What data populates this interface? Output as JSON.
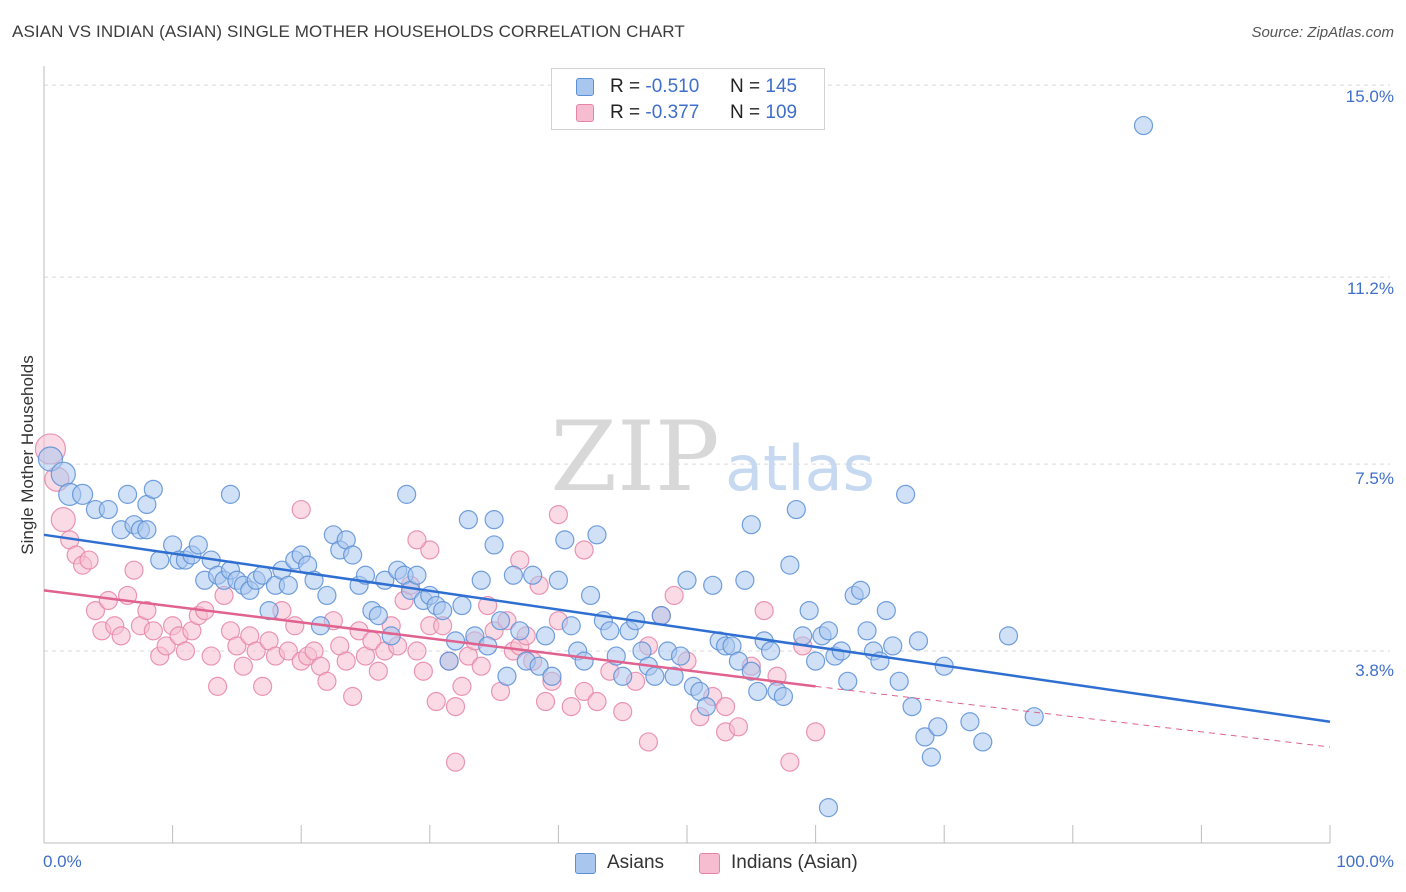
{
  "title": "ASIAN VS INDIAN (ASIAN) SINGLE MOTHER HOUSEHOLDS CORRELATION CHART",
  "source": "Source: ZipAtlas.com",
  "watermark": {
    "zip": "ZIP",
    "atlas": "atlas"
  },
  "legend": {
    "rows": [
      {
        "r_label": "R =",
        "r_value": "-0.510",
        "n_label": "N =",
        "n_value": "145"
      },
      {
        "r_label": "R =",
        "r_value": "-0.377",
        "n_label": "N =",
        "n_value": "109"
      }
    ]
  },
  "bottom_legend": {
    "asians": "Asians",
    "indians": "Indians (Asian)"
  },
  "colors": {
    "asians_fill": "#a9c6ef",
    "asians_stroke": "#5b8fd6",
    "asians_line": "#2f6fd1",
    "indians_fill": "#f6bdd0",
    "indians_stroke": "#e684a8",
    "indians_line": "#e0628f",
    "grid": "#d9d9d9",
    "tick_text": "#3f6fc9"
  },
  "chart_data": {
    "type": "scatter",
    "title": "ASIAN VS INDIAN (ASIAN) SINGLE MOTHER HOUSEHOLDS CORRELATION CHART",
    "xlabel": "",
    "ylabel": "Single Mother Households",
    "xlim": [
      0,
      100
    ],
    "ylim": [
      0,
      15.3
    ],
    "y_ticks": [
      3.8,
      7.5,
      11.2,
      15.0
    ],
    "y_tick_labels": [
      "3.8%",
      "7.5%",
      "11.2%",
      "15.0%"
    ],
    "x_tick_labels": [
      "0.0%",
      "100.0%"
    ],
    "grid": true,
    "legend_position": "top-center",
    "series": [
      {
        "name": "Asians",
        "r": -0.51,
        "n": 145,
        "trend": {
          "x0": 0,
          "y0": 6.1,
          "x1": 100,
          "y1": 2.4
        },
        "points": [
          [
            0.5,
            7.6
          ],
          [
            1.5,
            7.3
          ],
          [
            2,
            6.9
          ],
          [
            3,
            6.9
          ],
          [
            4,
            6.6
          ],
          [
            5,
            6.6
          ],
          [
            6.5,
            6.9
          ],
          [
            6,
            6.2
          ],
          [
            7,
            6.3
          ],
          [
            7.5,
            6.2
          ],
          [
            8,
            6.7
          ],
          [
            8,
            6.2
          ],
          [
            8.5,
            7.0
          ],
          [
            9,
            5.6
          ],
          [
            10,
            5.9
          ],
          [
            10.5,
            5.6
          ],
          [
            11,
            5.6
          ],
          [
            11.5,
            5.7
          ],
          [
            12,
            5.9
          ],
          [
            12.5,
            5.2
          ],
          [
            13,
            5.6
          ],
          [
            13.5,
            5.3
          ],
          [
            14,
            5.2
          ],
          [
            14.5,
            5.4
          ],
          [
            15,
            5.2
          ],
          [
            15.5,
            5.1
          ],
          [
            16,
            5.0
          ],
          [
            16.5,
            5.2
          ],
          [
            17,
            5.3
          ],
          [
            17.5,
            4.6
          ],
          [
            18,
            5.1
          ],
          [
            18.5,
            5.4
          ],
          [
            19,
            5.1
          ],
          [
            19.5,
            5.6
          ],
          [
            20,
            5.7
          ],
          [
            20.5,
            5.5
          ],
          [
            21,
            5.2
          ],
          [
            21.5,
            4.3
          ],
          [
            22,
            4.9
          ],
          [
            22.5,
            6.1
          ],
          [
            23,
            5.8
          ],
          [
            23.5,
            6.0
          ],
          [
            24,
            5.7
          ],
          [
            24.5,
            5.1
          ],
          [
            25,
            5.3
          ],
          [
            25.5,
            4.6
          ],
          [
            26,
            4.5
          ],
          [
            26.5,
            5.2
          ],
          [
            27,
            4.1
          ],
          [
            27.5,
            5.4
          ],
          [
            28,
            5.3
          ],
          [
            28.5,
            5.0
          ],
          [
            29,
            5.3
          ],
          [
            29.5,
            4.8
          ],
          [
            30,
            4.9
          ],
          [
            30.5,
            4.7
          ],
          [
            31,
            4.6
          ],
          [
            31.5,
            3.6
          ],
          [
            32,
            4.0
          ],
          [
            32.5,
            4.7
          ],
          [
            33,
            6.4
          ],
          [
            33.5,
            4.1
          ],
          [
            34,
            5.2
          ],
          [
            34.5,
            3.9
          ],
          [
            35,
            5.9
          ],
          [
            35.5,
            4.4
          ],
          [
            36,
            3.3
          ],
          [
            36.5,
            5.3
          ],
          [
            37,
            4.2
          ],
          [
            37.5,
            3.6
          ],
          [
            38,
            5.3
          ],
          [
            38.5,
            3.5
          ],
          [
            39,
            4.1
          ],
          [
            39.5,
            3.3
          ],
          [
            40,
            5.2
          ],
          [
            40.5,
            6.0
          ],
          [
            41,
            4.3
          ],
          [
            41.5,
            3.8
          ],
          [
            42,
            3.6
          ],
          [
            42.5,
            4.9
          ],
          [
            43,
            6.1
          ],
          [
            43.5,
            4.4
          ],
          [
            44,
            4.2
          ],
          [
            44.5,
            3.7
          ],
          [
            45,
            3.3
          ],
          [
            45.5,
            4.2
          ],
          [
            46,
            4.4
          ],
          [
            46.5,
            3.8
          ],
          [
            47,
            3.5
          ],
          [
            47.5,
            3.3
          ],
          [
            48,
            4.5
          ],
          [
            48.5,
            3.8
          ],
          [
            49,
            3.3
          ],
          [
            49.5,
            3.7
          ],
          [
            50,
            5.2
          ],
          [
            50.5,
            3.1
          ],
          [
            51,
            3.0
          ],
          [
            51.5,
            2.7
          ],
          [
            52,
            5.1
          ],
          [
            52.5,
            4.0
          ],
          [
            53,
            3.9
          ],
          [
            53.5,
            3.9
          ],
          [
            54,
            3.6
          ],
          [
            54.5,
            5.2
          ],
          [
            55,
            3.4
          ],
          [
            55.5,
            3.0
          ],
          [
            56,
            4.0
          ],
          [
            56.5,
            3.8
          ],
          [
            57,
            3.0
          ],
          [
            57.5,
            2.9
          ],
          [
            58,
            5.5
          ],
          [
            58.5,
            6.6
          ],
          [
            59,
            4.1
          ],
          [
            59.5,
            4.6
          ],
          [
            60,
            3.6
          ],
          [
            60.5,
            4.1
          ],
          [
            61,
            4.2
          ],
          [
            61.5,
            3.7
          ],
          [
            62,
            3.8
          ],
          [
            62.5,
            3.2
          ],
          [
            63,
            4.9
          ],
          [
            63.5,
            5.0
          ],
          [
            64,
            4.2
          ],
          [
            64.5,
            3.8
          ],
          [
            65,
            3.6
          ],
          [
            65.5,
            4.6
          ],
          [
            66,
            3.9
          ],
          [
            66.5,
            3.2
          ],
          [
            67,
            6.9
          ],
          [
            67.5,
            2.7
          ],
          [
            68,
            4.0
          ],
          [
            68.5,
            2.1
          ],
          [
            69,
            1.7
          ],
          [
            69.5,
            2.3
          ],
          [
            70,
            3.5
          ],
          [
            72,
            2.4
          ],
          [
            73,
            2.0
          ],
          [
            75,
            4.1
          ],
          [
            77,
            2.5
          ],
          [
            61,
            0.7
          ],
          [
            14.5,
            6.9
          ],
          [
            28.2,
            6.9
          ],
          [
            35,
            6.4
          ],
          [
            55,
            6.3
          ],
          [
            85.5,
            14.2
          ]
        ]
      },
      {
        "name": "Indians (Asian)",
        "r": -0.377,
        "n": 109,
        "trend": {
          "x0": 0,
          "y0": 5.0,
          "x1": 60,
          "y1": 3.1,
          "dash_x1": 100,
          "dash_y1": 1.9
        },
        "points": [
          [
            0.5,
            7.8
          ],
          [
            1,
            7.2
          ],
          [
            1.5,
            6.4
          ],
          [
            2,
            6.0
          ],
          [
            2.5,
            5.7
          ],
          [
            3,
            5.5
          ],
          [
            3.5,
            5.6
          ],
          [
            4,
            4.6
          ],
          [
            4.5,
            4.2
          ],
          [
            5,
            4.8
          ],
          [
            5.5,
            4.3
          ],
          [
            6,
            4.1
          ],
          [
            6.5,
            4.9
          ],
          [
            7,
            5.4
          ],
          [
            7.5,
            4.3
          ],
          [
            8,
            4.6
          ],
          [
            8.5,
            4.2
          ],
          [
            9,
            3.7
          ],
          [
            9.5,
            3.9
          ],
          [
            10,
            4.3
          ],
          [
            10.5,
            4.1
          ],
          [
            11,
            3.8
          ],
          [
            11.5,
            4.2
          ],
          [
            12,
            4.5
          ],
          [
            12.5,
            4.6
          ],
          [
            13,
            3.7
          ],
          [
            13.5,
            3.1
          ],
          [
            14,
            4.9
          ],
          [
            14.5,
            4.2
          ],
          [
            15,
            3.9
          ],
          [
            15.5,
            3.5
          ],
          [
            16,
            4.1
          ],
          [
            16.5,
            3.8
          ],
          [
            17,
            3.1
          ],
          [
            17.5,
            4.0
          ],
          [
            18,
            3.7
          ],
          [
            18.5,
            4.6
          ],
          [
            19,
            3.8
          ],
          [
            19.5,
            4.3
          ],
          [
            20,
            3.6
          ],
          [
            20.5,
            3.7
          ],
          [
            21,
            3.8
          ],
          [
            21.5,
            3.5
          ],
          [
            22,
            3.2
          ],
          [
            22.5,
            4.4
          ],
          [
            23,
            3.9
          ],
          [
            23.5,
            3.6
          ],
          [
            24,
            2.9
          ],
          [
            24.5,
            4.2
          ],
          [
            25,
            3.7
          ],
          [
            25.5,
            4.0
          ],
          [
            26,
            3.4
          ],
          [
            26.5,
            3.8
          ],
          [
            27,
            4.3
          ],
          [
            27.5,
            3.9
          ],
          [
            28,
            4.8
          ],
          [
            28.5,
            5.1
          ],
          [
            29,
            3.8
          ],
          [
            29.5,
            3.4
          ],
          [
            30,
            4.3
          ],
          [
            30.5,
            2.8
          ],
          [
            31,
            4.3
          ],
          [
            31.5,
            3.6
          ],
          [
            32,
            2.7
          ],
          [
            32.5,
            3.1
          ],
          [
            33,
            3.7
          ],
          [
            33.5,
            4.0
          ],
          [
            34,
            3.5
          ],
          [
            34.5,
            4.7
          ],
          [
            35,
            4.2
          ],
          [
            35.5,
            3.0
          ],
          [
            36,
            4.4
          ],
          [
            36.5,
            3.8
          ],
          [
            37,
            3.9
          ],
          [
            37.5,
            4.1
          ],
          [
            38,
            3.6
          ],
          [
            38.5,
            5.1
          ],
          [
            39,
            2.8
          ],
          [
            39.5,
            3.2
          ],
          [
            40,
            4.4
          ],
          [
            41,
            2.7
          ],
          [
            42,
            3.0
          ],
          [
            43,
            2.8
          ],
          [
            44,
            3.4
          ],
          [
            45,
            2.6
          ],
          [
            46,
            3.2
          ],
          [
            47,
            3.9
          ],
          [
            48,
            4.5
          ],
          [
            49,
            4.9
          ],
          [
            50,
            3.6
          ],
          [
            51,
            2.5
          ],
          [
            52,
            2.9
          ],
          [
            53,
            2.2
          ],
          [
            54,
            2.3
          ],
          [
            55,
            3.5
          ],
          [
            56,
            4.6
          ],
          [
            57,
            3.3
          ],
          [
            58,
            1.6
          ],
          [
            59,
            3.9
          ],
          [
            60,
            2.2
          ],
          [
            20,
            6.6
          ],
          [
            40,
            6.5
          ],
          [
            42,
            5.8
          ],
          [
            30,
            5.8
          ],
          [
            29,
            6.0
          ],
          [
            37,
            5.6
          ],
          [
            32,
            1.6
          ],
          [
            47,
            2.0
          ],
          [
            53,
            2.7
          ]
        ]
      }
    ]
  }
}
